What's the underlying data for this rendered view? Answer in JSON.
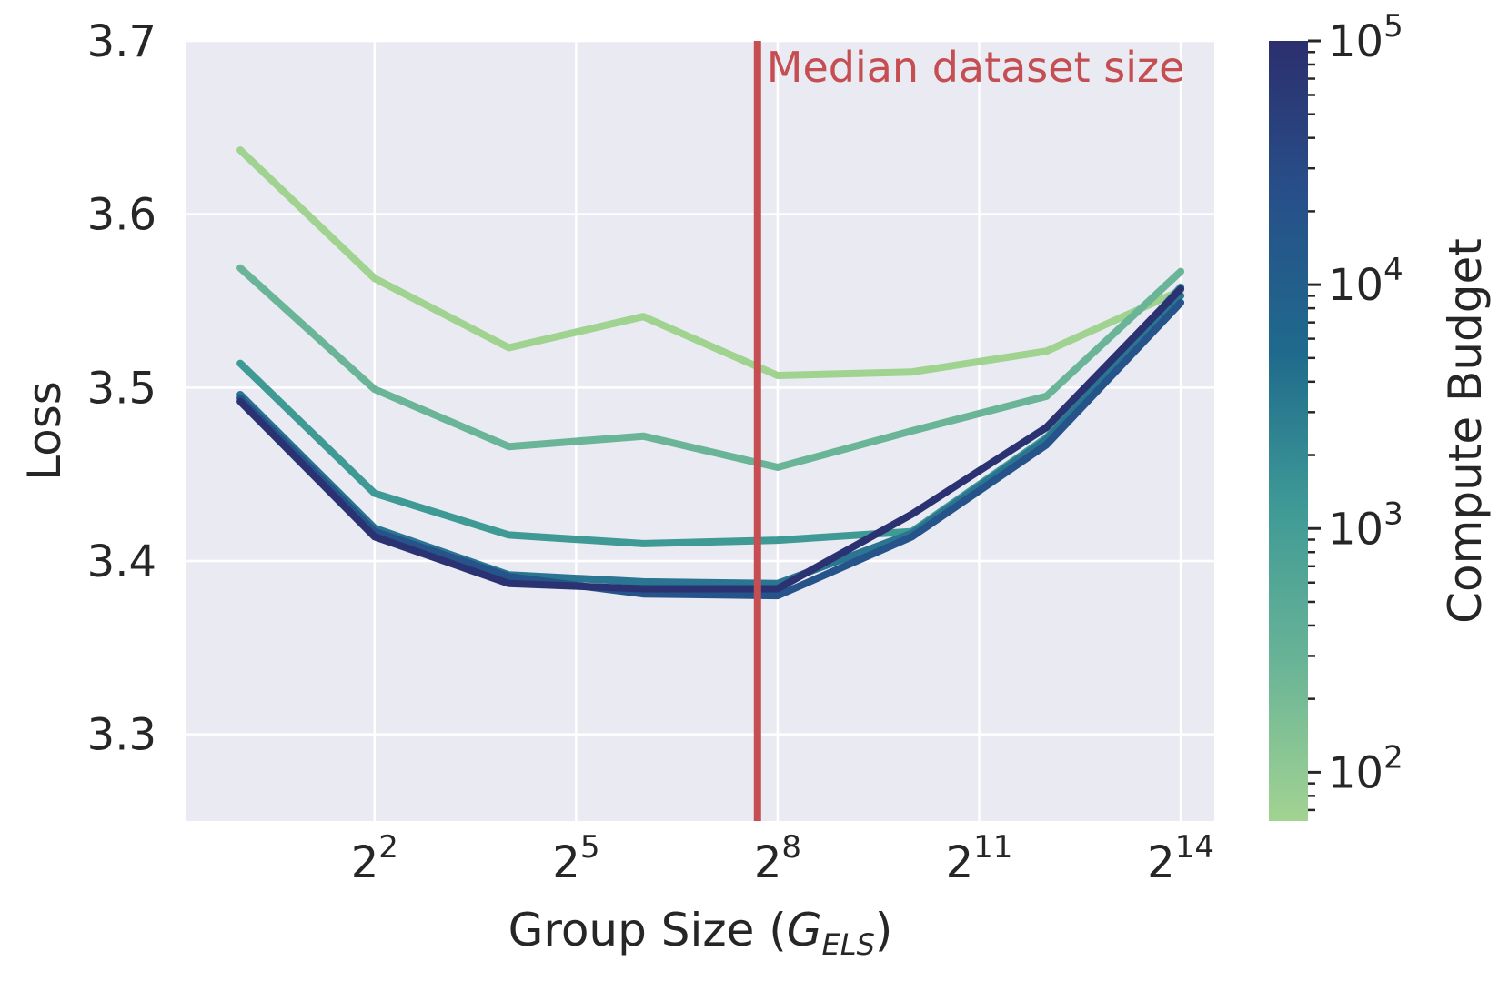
{
  "chart_data": {
    "type": "line",
    "xlabel": "Group Size (",
    "xlabel_math": "G",
    "xlabel_sub": "ELS",
    "xlabel_close": ")",
    "ylabel": "Loss",
    "ylim": [
      3.25,
      3.7
    ],
    "xlim_log2": [
      -0.8,
      14.5
    ],
    "yticks": [
      {
        "value": 3.3,
        "label": "3.3"
      },
      {
        "value": 3.4,
        "label": "3.4"
      },
      {
        "value": 3.5,
        "label": "3.5"
      },
      {
        "value": 3.6,
        "label": "3.6"
      },
      {
        "value": 3.7,
        "label": "3.7"
      }
    ],
    "xticks": [
      {
        "exp": 2,
        "base": "2",
        "sup": "2"
      },
      {
        "exp": 5,
        "base": "2",
        "sup": "5"
      },
      {
        "exp": 8,
        "base": "2",
        "sup": "8"
      },
      {
        "exp": 11,
        "base": "2",
        "sup": "11"
      },
      {
        "exp": 14,
        "base": "2",
        "sup": "14"
      }
    ],
    "x_log2": [
      0,
      2,
      4,
      6,
      8,
      10,
      12,
      14
    ],
    "series": [
      {
        "name": "Compute 10^2",
        "color": "#a0d290",
        "values": [
          3.637,
          3.563,
          3.523,
          3.541,
          3.507,
          3.509,
          3.521,
          3.556
        ]
      },
      {
        "name": "Compute 10^3",
        "color": "#6ab497",
        "values": [
          3.569,
          3.499,
          3.466,
          3.472,
          3.454,
          3.475,
          3.495,
          3.567
        ]
      },
      {
        "name": "Compute 10^3.5",
        "color": "#3f9a96",
        "values": [
          3.514,
          3.439,
          3.415,
          3.41,
          3.412,
          3.417,
          3.471,
          3.558
        ]
      },
      {
        "name": "Compute 10^4",
        "color": "#2a7591",
        "values": [
          3.496,
          3.419,
          3.392,
          3.388,
          3.387,
          3.416,
          3.47,
          3.553
        ]
      },
      {
        "name": "Compute 10^4.5",
        "color": "#25538a",
        "values": [
          3.494,
          3.417,
          3.391,
          3.381,
          3.38,
          3.414,
          3.467,
          3.549
        ]
      },
      {
        "name": "Compute 10^5",
        "color": "#2b3272",
        "values": [
          3.492,
          3.414,
          3.387,
          3.384,
          3.384,
          3.427,
          3.477,
          3.557
        ]
      }
    ],
    "vline": {
      "x_log2": 7.7,
      "label": "Median dataset size",
      "color": "#c44e52"
    },
    "colorbar": {
      "label": "Compute Budget",
      "log_range": [
        1.8,
        5.0
      ],
      "ticks": [
        {
          "exp": 2,
          "base": "10",
          "sup": "2"
        },
        {
          "exp": 3,
          "base": "10",
          "sup": "3"
        },
        {
          "exp": 4,
          "base": "10",
          "sup": "4"
        },
        {
          "exp": 5,
          "base": "10",
          "sup": "5"
        }
      ],
      "gradient": [
        "#a2d392",
        "#6ab497",
        "#3f9a96",
        "#1f6a8c",
        "#27508a",
        "#2c2f6e"
      ]
    }
  }
}
